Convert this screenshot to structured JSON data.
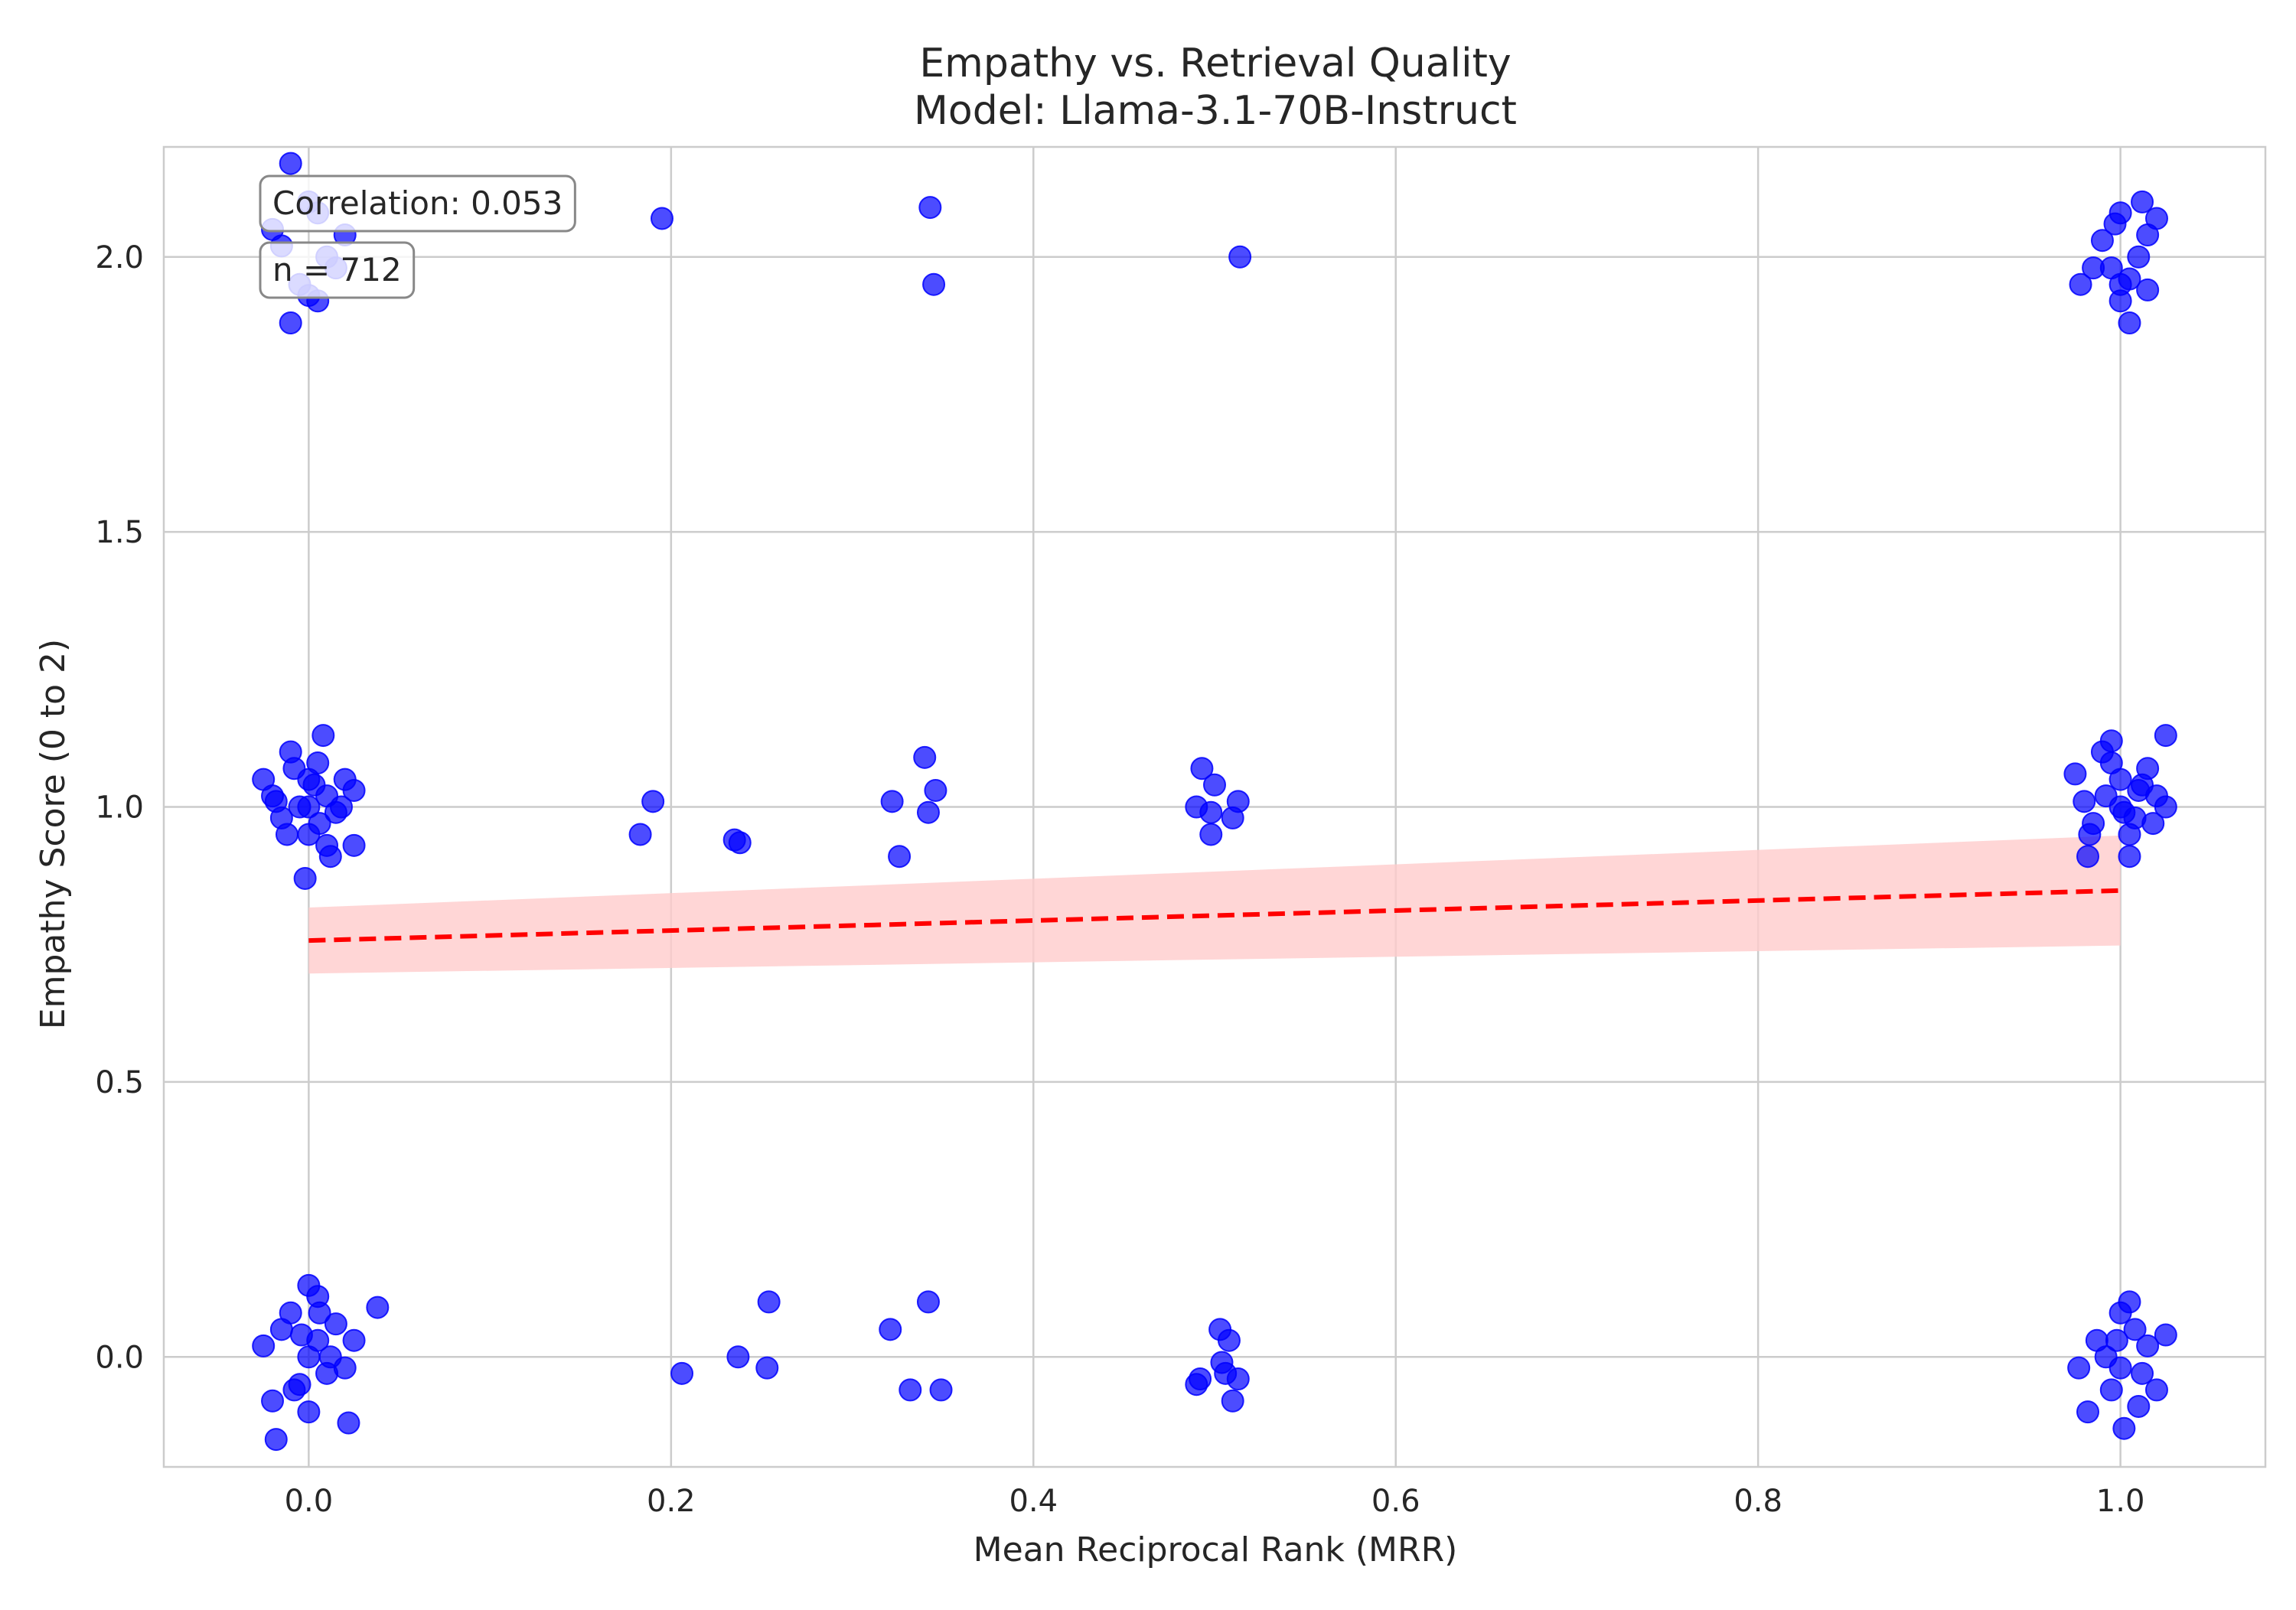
{
  "chart_data": {
    "type": "scatter",
    "title": "Empathy vs. Retrieval Quality",
    "subtitle": "Model: Llama-3.1-70B-Instruct",
    "xlabel": "Mean Reciprocal Rank (MRR)",
    "ylabel": "Empathy Score (0 to 2)",
    "xlim": [
      -0.08,
      1.08
    ],
    "ylim": [
      -0.2,
      2.2
    ],
    "xticks": [
      0.0,
      0.2,
      0.4,
      0.6,
      0.8,
      1.0
    ],
    "xtick_labels": [
      "0.0",
      "0.2",
      "0.4",
      "0.6",
      "0.8",
      "1.0"
    ],
    "yticks": [
      0.0,
      0.5,
      1.0,
      1.5,
      2.0
    ],
    "ytick_labels": [
      "0.0",
      "0.5",
      "1.0",
      "1.5",
      "2.0"
    ],
    "grid": true,
    "annotations": [
      "Correlation: 0.053",
      "n = 712"
    ],
    "colors": {
      "points": "#0000ff",
      "trend": "#ff0000",
      "band": "#ffcccc",
      "grid": "#cccccc"
    },
    "series": [
      {
        "points": [
          [
            -0.02,
            2.05
          ],
          [
            -0.01,
            2.17
          ],
          [
            0.0,
            2.1
          ],
          [
            0.005,
            2.08
          ],
          [
            0.01,
            2.0
          ],
          [
            -0.005,
            1.95
          ],
          [
            0.0,
            1.93
          ],
          [
            0.005,
            1.92
          ],
          [
            -0.01,
            1.88
          ],
          [
            0.015,
            1.98
          ],
          [
            -0.015,
            2.02
          ],
          [
            0.02,
            2.04
          ],
          [
            0.195,
            2.07
          ],
          [
            0.343,
            2.09
          ],
          [
            0.345,
            1.95
          ],
          [
            0.514,
            2.0
          ],
          [
            0.978,
            1.95
          ],
          [
            0.99,
            2.03
          ],
          [
            1.0,
            2.08
          ],
          [
            0.995,
            1.98
          ],
          [
            1.005,
            1.96
          ],
          [
            1.01,
            2.0
          ],
          [
            1.012,
            2.1
          ],
          [
            1.02,
            2.07
          ],
          [
            1.015,
            2.04
          ],
          [
            1.005,
            1.88
          ],
          [
            1.0,
            1.92
          ],
          [
            0.985,
            1.98
          ],
          [
            1.015,
            1.94
          ],
          [
            1.0,
            1.95
          ],
          [
            0.997,
            2.06
          ],
          [
            -0.025,
            1.05
          ],
          [
            -0.02,
            1.02
          ],
          [
            -0.015,
            0.98
          ],
          [
            -0.01,
            1.1
          ],
          [
            -0.005,
            1.0
          ],
          [
            0.0,
            1.05
          ],
          [
            0.0,
            0.95
          ],
          [
            0.005,
            1.08
          ],
          [
            0.01,
            1.02
          ],
          [
            0.01,
            0.93
          ],
          [
            0.015,
            0.99
          ],
          [
            0.02,
            1.05
          ],
          [
            0.025,
            1.03
          ],
          [
            0.025,
            0.93
          ],
          [
            0.008,
            1.13
          ],
          [
            -0.002,
            0.87
          ],
          [
            -0.012,
            0.95
          ],
          [
            0.018,
            1.0
          ],
          [
            0.003,
            1.04
          ],
          [
            -0.008,
            1.07
          ],
          [
            0.012,
            0.91
          ],
          [
            0.0,
            1.0
          ],
          [
            -0.018,
            1.01
          ],
          [
            0.006,
            0.97
          ],
          [
            0.183,
            0.95
          ],
          [
            0.19,
            1.01
          ],
          [
            0.235,
            0.94
          ],
          [
            0.238,
            0.935
          ],
          [
            0.322,
            1.01
          ],
          [
            0.326,
            0.91
          ],
          [
            0.34,
            1.09
          ],
          [
            0.342,
            0.99
          ],
          [
            0.346,
            1.03
          ],
          [
            0.49,
            1.0
          ],
          [
            0.493,
            1.07
          ],
          [
            0.498,
            0.99
          ],
          [
            0.5,
            1.04
          ],
          [
            0.498,
            0.95
          ],
          [
            0.51,
            0.98
          ],
          [
            0.513,
            1.01
          ],
          [
            0.975,
            1.06
          ],
          [
            0.98,
            1.01
          ],
          [
            0.985,
            0.97
          ],
          [
            0.99,
            1.1
          ],
          [
            0.995,
            1.12
          ],
          [
            1.0,
            1.0
          ],
          [
            1.0,
            1.05
          ],
          [
            1.005,
            0.95
          ],
          [
            1.005,
            0.91
          ],
          [
            1.01,
            1.03
          ],
          [
            1.015,
            1.07
          ],
          [
            1.02,
            1.02
          ],
          [
            1.025,
            1.0
          ],
          [
            1.025,
            1.13
          ],
          [
            1.018,
            0.97
          ],
          [
            0.982,
            0.91
          ],
          [
            0.983,
            0.95
          ],
          [
            0.995,
            1.08
          ],
          [
            1.008,
            0.98
          ],
          [
            1.012,
            1.04
          ],
          [
            0.992,
            1.02
          ],
          [
            1.002,
            0.99
          ],
          [
            -0.025,
            0.02
          ],
          [
            -0.02,
            -0.08
          ],
          [
            -0.015,
            0.05
          ],
          [
            -0.01,
            0.08
          ],
          [
            -0.005,
            -0.05
          ],
          [
            0.0,
            0.0
          ],
          [
            0.0,
            0.13
          ],
          [
            0.005,
            0.03
          ],
          [
            0.01,
            -0.03
          ],
          [
            0.015,
            0.06
          ],
          [
            0.02,
            -0.02
          ],
          [
            0.022,
            -0.12
          ],
          [
            -0.018,
            -0.15
          ],
          [
            0.025,
            0.03
          ],
          [
            0.038,
            0.09
          ],
          [
            0.005,
            0.11
          ],
          [
            -0.008,
            -0.06
          ],
          [
            0.012,
            0.0
          ],
          [
            0.0,
            -0.1
          ],
          [
            0.006,
            0.08
          ],
          [
            -0.004,
            0.04
          ],
          [
            0.206,
            -0.03
          ],
          [
            0.237,
            0.0
          ],
          [
            0.254,
            0.1
          ],
          [
            0.253,
            -0.02
          ],
          [
            0.321,
            0.05
          ],
          [
            0.332,
            -0.06
          ],
          [
            0.342,
            0.1
          ],
          [
            0.349,
            -0.06
          ],
          [
            0.49,
            -0.05
          ],
          [
            0.492,
            -0.04
          ],
          [
            0.503,
            0.05
          ],
          [
            0.504,
            -0.01
          ],
          [
            0.506,
            -0.03
          ],
          [
            0.508,
            0.03
          ],
          [
            0.51,
            -0.08
          ],
          [
            0.513,
            -0.04
          ],
          [
            0.977,
            -0.02
          ],
          [
            0.982,
            -0.1
          ],
          [
            0.987,
            0.03
          ],
          [
            0.992,
            0.0
          ],
          [
            0.995,
            -0.06
          ],
          [
            1.0,
            0.08
          ],
          [
            1.002,
            -0.13
          ],
          [
            1.005,
            0.1
          ],
          [
            1.008,
            0.05
          ],
          [
            1.012,
            -0.03
          ],
          [
            1.015,
            0.02
          ],
          [
            1.02,
            -0.06
          ],
          [
            1.025,
            0.04
          ],
          [
            1.01,
            -0.09
          ],
          [
            0.998,
            0.03
          ],
          [
            1.0,
            -0.02
          ]
        ]
      }
    ],
    "trend": {
      "x": [
        0.0,
        1.0
      ],
      "y": [
        0.757,
        0.848
      ],
      "ci_lower": [
        0.697,
        0.748
      ],
      "ci_upper": [
        0.817,
        0.948
      ]
    }
  }
}
